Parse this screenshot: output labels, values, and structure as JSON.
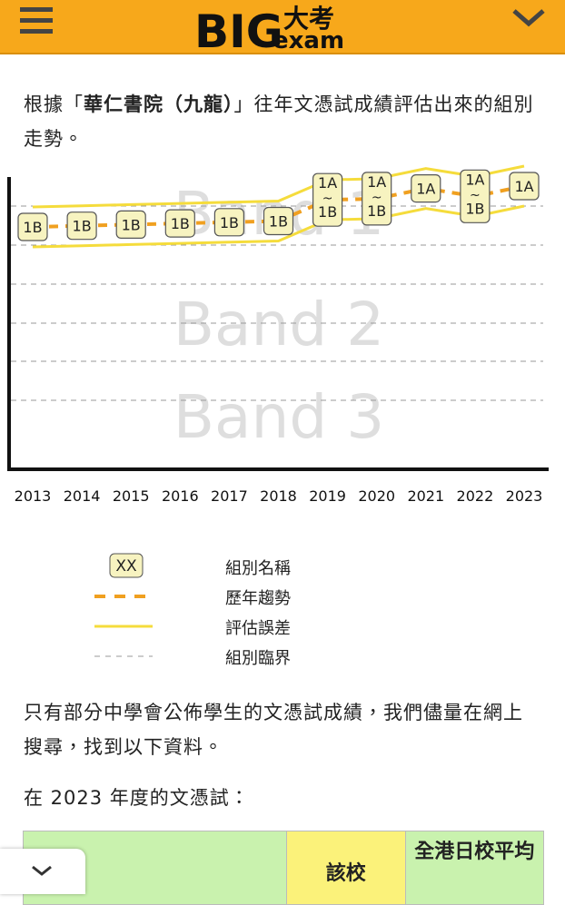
{
  "header": {
    "logo_big": "BIG",
    "logo_cn": "大考",
    "logo_exam": "exam"
  },
  "intro": {
    "prefix": "根據「",
    "school": "華仁書院（九龍）",
    "suffix": "」往年文憑試成績評估出來的組別走勢。"
  },
  "chart": {
    "years": [
      "2013",
      "2014",
      "2015",
      "2016",
      "2017",
      "2018",
      "2019",
      "2020",
      "2021",
      "2022",
      "2023"
    ],
    "bands": [
      [
        "1B"
      ],
      [
        "1B"
      ],
      [
        "1B"
      ],
      [
        "1B"
      ],
      [
        "1B"
      ],
      [
        "1B"
      ],
      [
        "1A",
        "~",
        "1B"
      ],
      [
        "1A",
        "~",
        "1B"
      ],
      [
        "1A"
      ],
      [
        "1A",
        "~",
        "1B"
      ],
      [
        "1A"
      ]
    ],
    "band_names": [
      "Band 1",
      "Band 2",
      "Band 3"
    ]
  },
  "legend": {
    "sample": "XX",
    "labels": [
      "組別名稱",
      "歷年趨勢",
      "評估誤差",
      "組別臨界"
    ]
  },
  "note": "只有部分中學會公佈學生的文憑試成績，我們儘量在網上搜尋，找到以下資料。",
  "year_heading": "在 2023 年度的文憑試：",
  "table": {
    "header": [
      "該校",
      "全港日校平均"
    ]
  }
}
